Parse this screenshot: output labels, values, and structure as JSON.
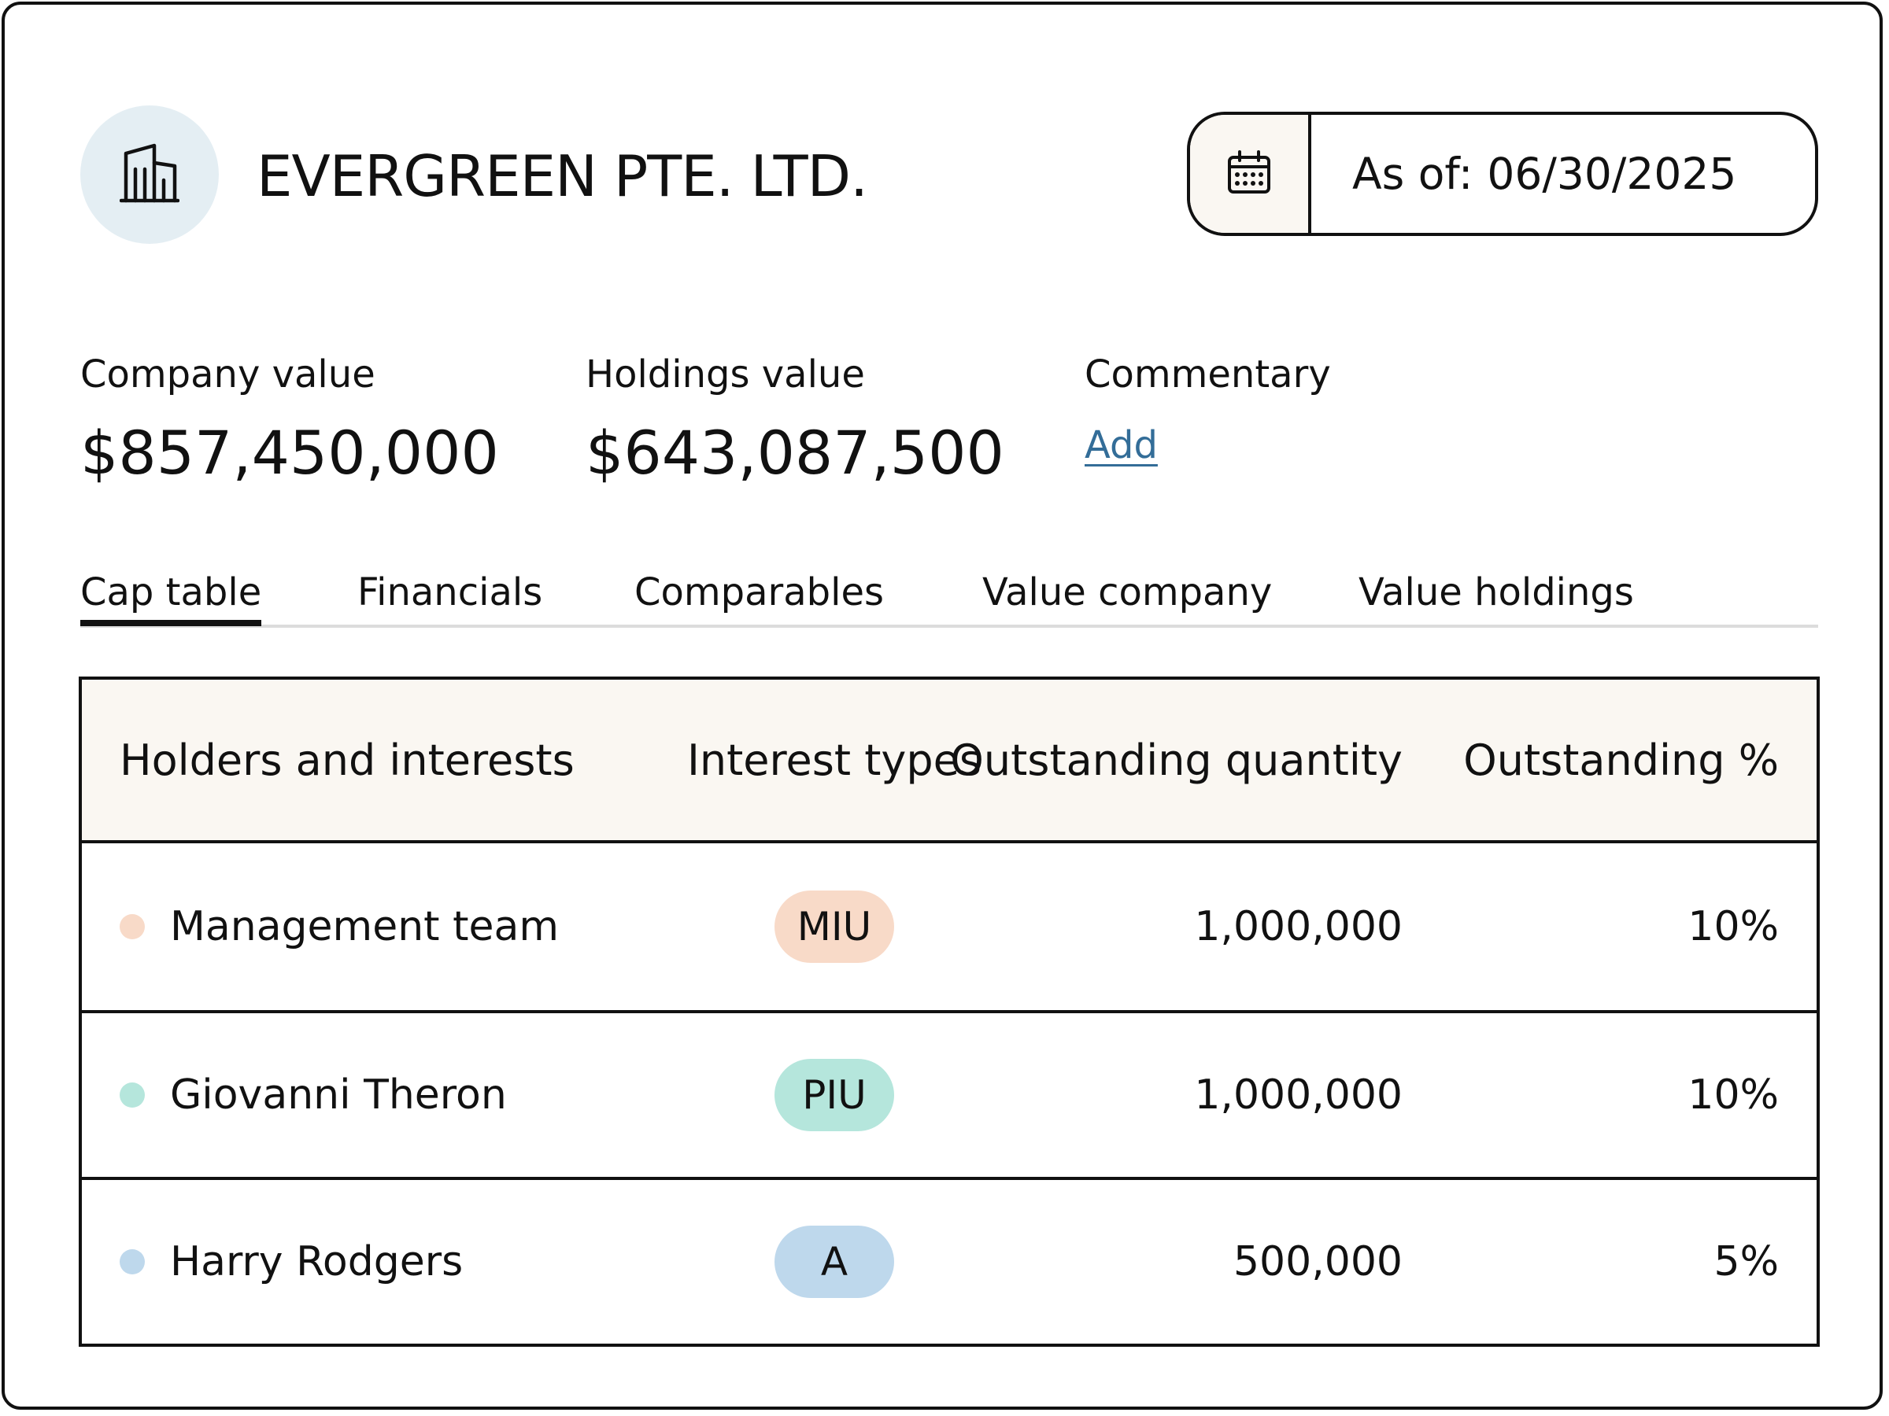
{
  "header": {
    "company_name": "EVERGREEN PTE. LTD.",
    "company_icon": "building-icon",
    "date_picker": {
      "icon": "calendar-icon",
      "label": "As of:",
      "value": "06/30/2025"
    }
  },
  "metrics": {
    "company_value": {
      "label": "Company value",
      "value": "$857,450,000"
    },
    "holdings_value": {
      "label": "Holdings value",
      "value": "$643,087,500"
    },
    "commentary": {
      "label": "Commentary",
      "link": "Add"
    }
  },
  "tabs": [
    {
      "label": "Cap table",
      "active": true
    },
    {
      "label": "Financials"
    },
    {
      "label": "Comparables"
    },
    {
      "label": "Value company"
    },
    {
      "label": "Value holdings"
    }
  ],
  "table": {
    "headers": [
      "Holders and interests",
      "Interest types",
      "Outstanding quantity",
      "Outstanding %"
    ],
    "rows": [
      {
        "holder": "Management team",
        "type": "MIU",
        "quantity": "1,000,000",
        "percent": "10%",
        "dot_color": "#f8dac8",
        "pill_color": "#f8dac8"
      },
      {
        "holder": "Giovanni Theron",
        "type": "PIU",
        "quantity": "1,000,000",
        "percent": "10%",
        "dot_color": "#b5e6dc",
        "pill_color": "#b5e6dc"
      },
      {
        "holder": "Harry Rodgers",
        "type": "A",
        "quantity": "500,000",
        "percent": "5%",
        "dot_color": "#bed8ec",
        "pill_color": "#bed8ec"
      }
    ]
  },
  "colors": {
    "link": "#336d98",
    "avatar_bg": "#e4eef3",
    "header_bg": "#faf7f2"
  }
}
